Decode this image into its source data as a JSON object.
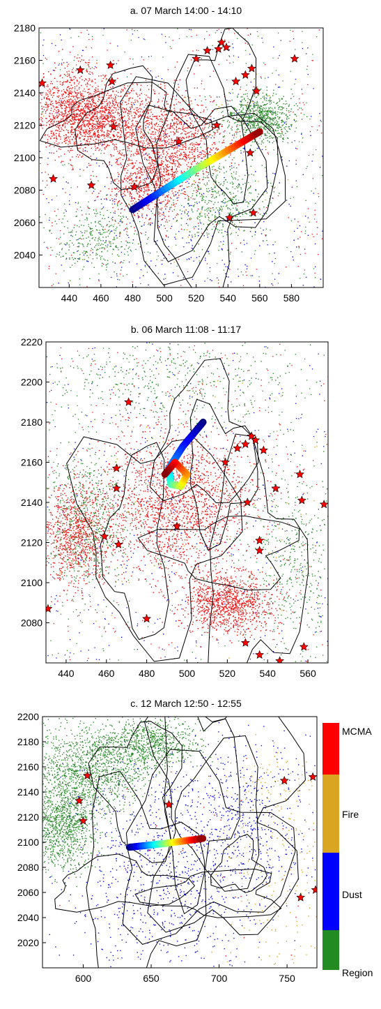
{
  "figure": {
    "palette": {
      "MCMA": "#f21010",
      "Fire": "#daa520",
      "Dust": "#1010f0",
      "Region": "#2e8b2e"
    },
    "legend": {
      "entries": [
        {
          "label": "MCMA",
          "color": "#ff0000"
        },
        {
          "label": "Fire",
          "color": "#daa520"
        },
        {
          "label": "Dust",
          "color": "#0000ff"
        },
        {
          "label": "Region",
          "color": "#228b22"
        }
      ]
    }
  },
  "chart_data": [
    {
      "type": "scatter",
      "title": "a. 07 March 14:00 - 14:10",
      "xlim": [
        421,
        600
      ],
      "ylim": [
        2020,
        2180
      ],
      "xticks": [
        440,
        460,
        480,
        500,
        520,
        540,
        560,
        580
      ],
      "yticks": [
        2040,
        2060,
        2080,
        2100,
        2120,
        2140,
        2160,
        2180
      ],
      "sources": [
        {
          "name": "MCMA",
          "blobs": [
            [
              460,
              2125,
              28,
              18,
              1
            ],
            [
              505,
              2110,
              25,
              25,
              0.8
            ],
            [
              490,
              2085,
              22,
              20,
              0.6
            ],
            [
              440,
              2130,
              18,
              22,
              0.6
            ]
          ],
          "density": 3600
        },
        {
          "name": "Region",
          "blobs": [
            [
              560,
              2125,
              18,
              12,
              1
            ],
            [
              535,
              2075,
              25,
              22,
              0.6
            ],
            [
              455,
              2050,
              22,
              18,
              0.4
            ]
          ],
          "density": 1600
        },
        {
          "name": "Dust",
          "blobs": [
            [
              510,
              2060,
              70,
              50,
              1
            ]
          ],
          "density": 260
        },
        {
          "name": "Fire",
          "blobs": [
            [
              520,
              2100,
              60,
              60,
              1
            ]
          ],
          "density": 60
        }
      ],
      "background_density": 900,
      "trajectory": [
        [
          480,
          2068
        ],
        [
          520,
          2093
        ],
        [
          560,
          2116
        ]
      ],
      "stars": [
        [
          423,
          2146
        ],
        [
          430,
          2087
        ],
        [
          447,
          2154
        ],
        [
          454,
          2083
        ],
        [
          466,
          2157
        ],
        [
          467,
          2147
        ],
        [
          468,
          2119
        ],
        [
          481,
          2082
        ],
        [
          509,
          2110
        ],
        [
          520,
          2161
        ],
        [
          527,
          2166
        ],
        [
          533,
          2120
        ],
        [
          534,
          2167
        ],
        [
          536,
          2171
        ],
        [
          539,
          2168
        ],
        [
          541,
          2063
        ],
        [
          545,
          2147
        ],
        [
          551,
          2151
        ],
        [
          555,
          2155
        ],
        [
          554,
          2103
        ],
        [
          558,
          2141
        ],
        [
          556,
          2066
        ],
        [
          582,
          2161
        ]
      ]
    },
    {
      "type": "scatter",
      "title": "b. 06 March 11:08 - 11:17",
      "xlim": [
        430,
        570
      ],
      "ylim": [
        2060,
        2220
      ],
      "xticks": [
        440,
        460,
        480,
        500,
        520,
        540,
        560
      ],
      "yticks": [
        2080,
        2100,
        2120,
        2140,
        2160,
        2180,
        2200,
        2220
      ],
      "sources": [
        {
          "name": "MCMA",
          "blobs": [
            [
              495,
              2140,
              30,
              30,
              1
            ],
            [
              520,
              2090,
              18,
              12,
              0.6
            ],
            [
              445,
              2125,
              14,
              20,
              0.5
            ]
          ],
          "density": 3800
        },
        {
          "name": "Region",
          "blobs": [
            [
              450,
              2130,
              18,
              28,
              0.7
            ],
            [
              555,
              2110,
              25,
              40,
              0.6
            ],
            [
              490,
              2200,
              50,
              18,
              0.5
            ]
          ],
          "density": 1500
        },
        {
          "name": "Dust",
          "blobs": [
            [
              500,
              2140,
              70,
              80,
              1
            ]
          ],
          "density": 120
        },
        {
          "name": "Fire",
          "blobs": [
            [
              500,
              2140,
              70,
              80,
              1
            ]
          ],
          "density": 90
        }
      ],
      "background_density": 900,
      "trajectory": [
        [
          508,
          2180
        ],
        [
          498,
          2168
        ],
        [
          491,
          2157
        ],
        [
          492,
          2149
        ],
        [
          497,
          2148
        ],
        [
          500,
          2154
        ],
        [
          494,
          2160
        ],
        [
          489,
          2154
        ]
      ],
      "stars": [
        [
          431,
          2087
        ],
        [
          459,
          2123
        ],
        [
          465,
          2157
        ],
        [
          465,
          2147
        ],
        [
          466,
          2119
        ],
        [
          471,
          2190
        ],
        [
          480,
          2082
        ],
        [
          495,
          2128
        ],
        [
          519,
          2160
        ],
        [
          525,
          2167
        ],
        [
          529,
          2169
        ],
        [
          530,
          2140
        ],
        [
          532,
          2173
        ],
        [
          534,
          2171
        ],
        [
          536,
          2121
        ],
        [
          536,
          2116
        ],
        [
          538,
          2166
        ],
        [
          544,
          2147
        ],
        [
          556,
          2154
        ],
        [
          557,
          2141
        ],
        [
          568,
          2139
        ],
        [
          529,
          2070
        ],
        [
          536,
          2064
        ],
        [
          546,
          2061
        ],
        [
          558,
          2068
        ]
      ]
    },
    {
      "type": "scatter",
      "title": "c. 12 March 12:50 - 12:55",
      "xlim": [
        570,
        772
      ],
      "ylim": [
        2000,
        2200
      ],
      "xticks": [
        600,
        650,
        700,
        750
      ],
      "yticks": [
        2020,
        2040,
        2060,
        2080,
        2100,
        2120,
        2140,
        2160,
        2180,
        2200
      ],
      "sources": [
        {
          "name": "Region",
          "blobs": [
            [
              605,
              2160,
              38,
              30,
              1
            ],
            [
              585,
              2115,
              20,
              30,
              0.8
            ],
            [
              650,
              2180,
              30,
              15,
              0.5
            ]
          ],
          "density": 3200
        },
        {
          "name": "Dust",
          "blobs": [
            [
              660,
              2080,
              60,
              70,
              1
            ],
            [
              720,
              2120,
              40,
              60,
              0.5
            ]
          ],
          "density": 1400
        },
        {
          "name": "Fire",
          "blobs": [
            [
              745,
              2060,
              35,
              70,
              1
            ],
            [
              740,
              2140,
              25,
              30,
              0.5
            ]
          ],
          "density": 260
        },
        {
          "name": "MCMA",
          "blobs": [
            [
              690,
              2080,
              80,
              80,
              1
            ]
          ],
          "density": 40
        }
      ],
      "background_density": 0,
      "trajectory": [
        [
          634,
          2096
        ],
        [
          660,
          2099
        ],
        [
          688,
          2103
        ]
      ],
      "stars": [
        [
          597,
          2133
        ],
        [
          600,
          2117
        ],
        [
          603,
          2153
        ],
        [
          663,
          2130
        ],
        [
          748,
          2149
        ],
        [
          769,
          2152
        ],
        [
          760,
          2056
        ],
        [
          771,
          2062
        ]
      ]
    }
  ]
}
